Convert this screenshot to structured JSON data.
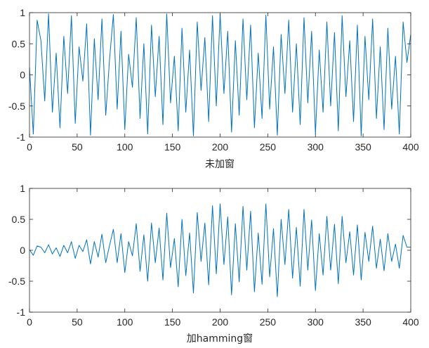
{
  "chart_data": [
    {
      "type": "line",
      "title": "",
      "xlabel": "未加窗",
      "ylabel": "",
      "xlim": [
        0,
        400
      ],
      "ylim": [
        -1,
        1
      ],
      "xticks": [
        0,
        50,
        100,
        150,
        200,
        250,
        300,
        350,
        400
      ],
      "xtick_labels": [
        "0",
        "50",
        "100",
        "150",
        "200",
        "250",
        "300",
        "350",
        "400"
      ],
      "yticks": [
        -1,
        -0.5,
        0,
        0.5,
        1
      ],
      "ytick_labels": [
        "-1",
        "-0.5",
        "0",
        "0.5",
        "1"
      ],
      "grid": false,
      "line_color": "#0072BD",
      "series": [
        {
          "x_start": 0,
          "x_step": 4,
          "values": [
            0.12,
            -0.95,
            0.88,
            0.55,
            -0.42,
            0.98,
            -0.6,
            0.35,
            -0.85,
            0.62,
            -0.3,
            0.95,
            -0.78,
            0.45,
            -0.1,
            0.82,
            -0.97,
            0.58,
            -0.4,
            0.9,
            -0.65,
            0.25,
            0.97,
            -0.55,
            0.7,
            -0.88,
            0.33,
            -0.2,
            0.92,
            -0.7,
            0.5,
            -0.95,
            0.8,
            -0.35,
            0.62,
            -0.8,
            0.98,
            -0.45,
            0.3,
            -0.9,
            0.75,
            -0.6,
            0.4,
            -0.98,
            0.85,
            -0.25,
            0.6,
            -0.75,
            0.95,
            -0.5,
            0.98,
            -0.3,
            0.7,
            -0.92,
            0.55,
            -0.65,
            0.9,
            -0.4,
            0.8,
            -0.85,
            0.35,
            -0.7,
            0.96,
            -0.55,
            0.45,
            -0.97,
            0.65,
            -0.3,
            0.88,
            -0.6,
            0.5,
            -0.8,
            0.92,
            -0.45,
            0.7,
            -0.95,
            0.4,
            -0.6,
            0.85,
            -0.5,
            0.68,
            -0.9,
            0.95,
            -0.35,
            0.55,
            -0.75,
            0.8,
            -0.98,
            0.62,
            -0.4,
            0.9,
            -0.7,
            0.45,
            -0.88,
            0.75,
            -0.55,
            0.3,
            -0.95,
            0.85,
            0.2,
            0.65
          ]
        }
      ]
    },
    {
      "type": "line",
      "title": "",
      "xlabel": "加hamming窗",
      "ylabel": "",
      "xlim": [
        0,
        400
      ],
      "ylim": [
        -1,
        1
      ],
      "xticks": [
        0,
        50,
        100,
        150,
        200,
        250,
        300,
        350,
        400
      ],
      "xtick_labels": [
        "0",
        "50",
        "100",
        "150",
        "200",
        "250",
        "300",
        "350",
        "400"
      ],
      "yticks": [
        -1,
        -0.5,
        0,
        0.5,
        1
      ],
      "ytick_labels": [
        "-1",
        "-0.5",
        "0",
        "0.5",
        "1"
      ],
      "grid": false,
      "line_color": "#0072BD",
      "series": [
        {
          "x_start": 0,
          "x_step": 4,
          "values": [
            0.01,
            -0.08,
            0.07,
            0.05,
            -0.04,
            0.09,
            -0.06,
            0.04,
            -0.1,
            0.08,
            -0.04,
            0.14,
            -0.13,
            0.08,
            -0.02,
            0.17,
            -0.22,
            0.14,
            -0.11,
            0.26,
            -0.2,
            0.08,
            0.34,
            -0.2,
            0.27,
            -0.36,
            0.14,
            -0.09,
            0.43,
            -0.34,
            0.25,
            -0.5,
            0.44,
            -0.2,
            0.36,
            -0.48,
            0.6,
            -0.28,
            0.19,
            -0.59,
            0.5,
            -0.41,
            0.28,
            -0.69,
            0.61,
            -0.18,
            0.44,
            -0.56,
            0.72,
            -0.38,
            0.75,
            -0.23,
            0.54,
            -0.72,
            0.43,
            -0.51,
            0.71,
            -0.32,
            0.63,
            -0.67,
            0.28,
            -0.55,
            0.75,
            -0.43,
            0.35,
            -0.75,
            0.5,
            -0.23,
            0.66,
            -0.45,
            0.37,
            -0.58,
            0.66,
            -0.32,
            0.49,
            -0.65,
            0.27,
            -0.4,
            0.55,
            -0.32,
            0.42,
            -0.54,
            0.55,
            -0.2,
            0.3,
            -0.4,
            0.41,
            -0.48,
            0.29,
            -0.18,
            0.39,
            -0.29,
            0.18,
            -0.33,
            0.27,
            -0.18,
            0.1,
            -0.29,
            0.24,
            0.05,
            0.05
          ]
        }
      ]
    }
  ]
}
